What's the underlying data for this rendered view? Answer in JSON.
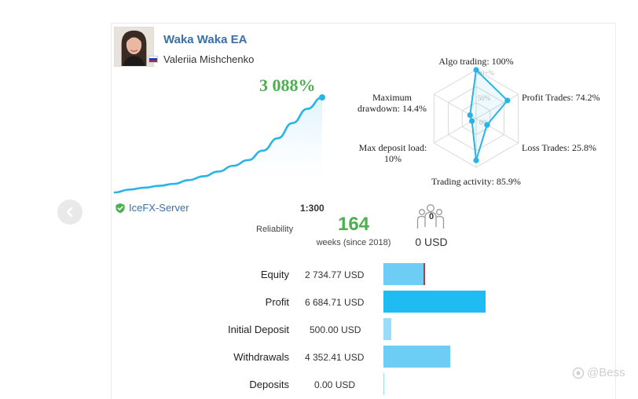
{
  "profile": {
    "ea_name": "Waka Waka EA",
    "author": "Valeriia Mishchenko",
    "growth": "3 088%",
    "server": "IceFX-Server",
    "leverage": "1:300",
    "reliability_label": "Reliability",
    "weeks": "164",
    "weeks_label": "weeks (since 2018)",
    "subscribers": "0",
    "subscribers_funds": "0 USD",
    "flag_colors": [
      "#ffffff",
      "#1c3fc2",
      "#e4181c"
    ]
  },
  "colors": {
    "accent_blue": "#3b6fa6",
    "growth_green": "#4caf50",
    "line_blue": "#2ab3e6",
    "bar_light": "#6dcdf5",
    "bar_strong": "#1fbcf3",
    "bar_pale": "#9bdcf7"
  },
  "chart_data": [
    {
      "type": "area",
      "values": [
        0,
        3,
        5,
        7,
        9,
        13,
        17,
        22,
        28,
        34,
        44,
        57,
        73,
        88,
        100
      ],
      "ylim": [
        0,
        100
      ]
    },
    {
      "type": "radar",
      "axes": [
        {
          "label": "Algo trading: 100%",
          "value": 100
        },
        {
          "label": "Profit Trades: 74.2%",
          "value": 74.2
        },
        {
          "label": "Loss Trades: 25.8%",
          "value": 25.8
        },
        {
          "label": "Trading activity: 85.9%",
          "value": 85.9
        },
        {
          "label_lines": [
            "Max deposit load:",
            "10%"
          ],
          "value": 10
        },
        {
          "label_lines": [
            "Maximum",
            "drawdown: 14.4%"
          ],
          "value": 14.4
        }
      ],
      "ring_labels": [
        "100+%",
        "50%",
        "0%"
      ]
    }
  ],
  "stats": [
    {
      "label": "Equity",
      "value": "2 734.77 USD",
      "fraction": 0.41,
      "color": "#6dcdf5",
      "marker": true
    },
    {
      "label": "Profit",
      "value": "6 684.71 USD",
      "fraction": 1.0,
      "color": "#1fbcf3",
      "marker": false
    },
    {
      "label": "Initial Deposit",
      "value": "500.00 USD",
      "fraction": 0.075,
      "color": "#9bdcf7",
      "marker": false
    },
    {
      "label": "Withdrawals",
      "value": "4 352.41 USD",
      "fraction": 0.65,
      "color": "#6dcdf5",
      "marker": false
    },
    {
      "label": "Deposits",
      "value": "0.00 USD",
      "fraction": 0.0,
      "color": "#9bdcf7",
      "marker": false
    }
  ],
  "watermark": "@Bess",
  "icons": {
    "prev": "chevron-left-icon",
    "server": "shield-check-icon",
    "subscribers": "people-icon",
    "watermark": "brand-icon"
  }
}
